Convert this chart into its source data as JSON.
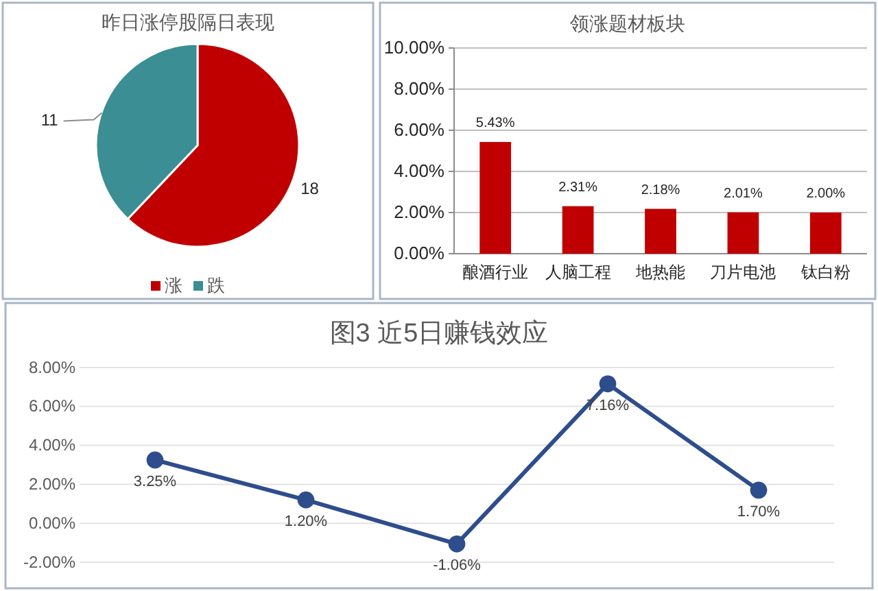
{
  "chart_data": [
    {
      "type": "pie",
      "title": "昨日涨停股隔日表现",
      "categories": [
        "涨",
        "跌"
      ],
      "values": [
        18,
        11
      ],
      "colors": [
        "#c00000",
        "#3b8e93"
      ],
      "data_labels": true,
      "legend": "bottom"
    },
    {
      "type": "bar",
      "title": "领涨题材板块",
      "categories": [
        "酿酒行业",
        "人脑工程",
        "地热能",
        "刀片电池",
        "钛白粉"
      ],
      "values": [
        5.43,
        2.31,
        2.18,
        2.01,
        2.0
      ],
      "value_labels": [
        "5.43%",
        "2.31%",
        "2.18%",
        "2.01%",
        "2.00%"
      ],
      "color": "#c00000",
      "ylim": [
        0,
        10
      ],
      "yticks": [
        {
          "value": 0,
          "label": "0.00%"
        },
        {
          "value": 2,
          "label": "2.00%"
        },
        {
          "value": 4,
          "label": "4.00%"
        },
        {
          "value": 6,
          "label": "6.00%"
        },
        {
          "value": 8,
          "label": "8.00%"
        },
        {
          "value": 10,
          "label": "10.00%"
        }
      ],
      "grid": "y"
    },
    {
      "type": "line",
      "title": "图3 近5日赚钱效应",
      "categories": [
        null,
        null,
        null,
        null,
        null
      ],
      "values": [
        3.25,
        1.2,
        -1.06,
        7.16,
        1.7
      ],
      "value_labels": [
        "3.25%",
        "1.20%",
        "-1.06%",
        "7.16%",
        "1.70%"
      ],
      "color": "#2e4d8c",
      "marker": "circle",
      "ylim": [
        -2,
        8
      ],
      "yticks": [
        {
          "value": -2,
          "label": "-2.00%"
        },
        {
          "value": 0,
          "label": "0.00%"
        },
        {
          "value": 2,
          "label": "2.00%"
        },
        {
          "value": 4,
          "label": "4.00%"
        },
        {
          "value": 6,
          "label": "6.00%"
        },
        {
          "value": 8,
          "label": "8.00%"
        }
      ],
      "grid": "y",
      "tick_labels": "y"
    }
  ]
}
